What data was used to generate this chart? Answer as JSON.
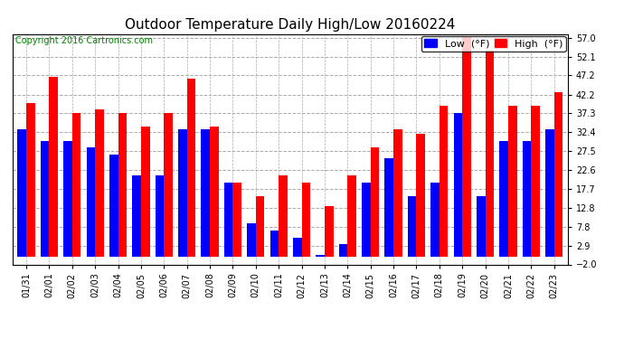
{
  "title": "Outdoor Temperature Daily High/Low 20160224",
  "copyright": "Copyright 2016 Cartronics.com",
  "legend_low": "Low  (°F)",
  "legend_high": "High  (°F)",
  "yticks": [
    -2.0,
    2.9,
    7.8,
    12.8,
    17.7,
    22.6,
    27.5,
    32.4,
    37.3,
    42.2,
    47.2,
    52.1,
    57.0
  ],
  "ylim": [
    -2.0,
    58.0
  ],
  "dates": [
    "01/31",
    "02/01",
    "02/02",
    "02/03",
    "02/04",
    "02/05",
    "02/06",
    "02/07",
    "02/08",
    "02/09",
    "02/10",
    "02/11",
    "02/12",
    "02/13",
    "02/14",
    "02/15",
    "02/16",
    "02/17",
    "02/18",
    "02/19",
    "02/20",
    "02/21",
    "02/22",
    "02/23"
  ],
  "low": [
    33.1,
    30.2,
    30.2,
    28.4,
    26.6,
    21.2,
    21.2,
    33.1,
    33.1,
    19.4,
    8.6,
    6.8,
    5.0,
    0.5,
    3.2,
    19.4,
    25.7,
    15.8,
    19.4,
    37.4,
    15.8,
    30.2,
    30.2,
    33.1
  ],
  "high": [
    40.1,
    46.9,
    37.4,
    38.3,
    37.4,
    33.8,
    37.4,
    46.4,
    33.8,
    19.4,
    15.8,
    21.2,
    19.4,
    13.1,
    21.2,
    28.4,
    33.1,
    32.0,
    39.2,
    57.2,
    53.6,
    39.2,
    39.2,
    42.8
  ],
  "bar_width": 0.38,
  "low_color": "#0000ff",
  "high_color": "#ff0000",
  "bg_color": "#ffffff",
  "plot_bg_color": "#ffffff",
  "grid_color": "#aaaaaa",
  "title_fontsize": 11,
  "tick_fontsize": 7,
  "copyright_fontsize": 7,
  "legend_fontsize": 8
}
